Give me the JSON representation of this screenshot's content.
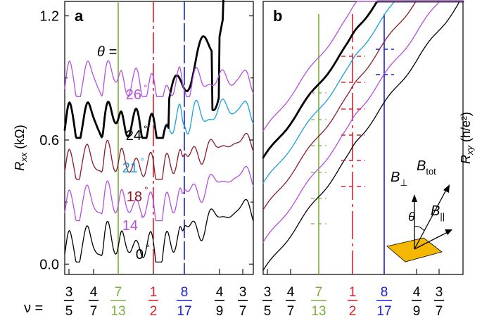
{
  "chart_data": [
    {
      "type": "line",
      "panel_label": "a",
      "ylabel_main": "R",
      "ylabel_sub": "xx",
      "ylabel_unit": " (kΩ)",
      "ylim": [
        -0.05,
        1.27
      ],
      "yticks": [
        {
          "value": 0.0,
          "label": "0.0"
        },
        {
          "value": 0.6,
          "label": "0.6"
        },
        {
          "value": 1.2,
          "label": "1.2"
        }
      ],
      "theta_prefix": "θ =",
      "theta_unit": "°",
      "series": [
        {
          "name": "0",
          "color": "#000000",
          "offset": 0.0,
          "bold": false
        },
        {
          "name": "14",
          "color": "#b44fe0",
          "offset": 0.2,
          "bold": false
        },
        {
          "name": "18",
          "color": "#8b1a2a",
          "offset": 0.4,
          "bold": false
        },
        {
          "name": "21",
          "color": "#1aa0dc",
          "offset": 0.6,
          "bold": false
        },
        {
          "name": "24",
          "color": "#000000",
          "offset": 0.6,
          "bold": true
        },
        {
          "name": "26",
          "color": "#b44fe0",
          "offset": 0.8,
          "bold": false
        }
      ]
    },
    {
      "type": "line",
      "panel_label": "b",
      "ylabel_main": "R",
      "ylabel_sub": "xy",
      "ylabel_unit": " (h/e²)",
      "series": [
        {
          "name": "0",
          "color": "#000000",
          "bold": false
        },
        {
          "name": "14",
          "color": "#b44fe0",
          "bold": false
        },
        {
          "name": "18",
          "color": "#8b1a2a",
          "bold": false
        },
        {
          "name": "21",
          "color": "#1aa0dc",
          "bold": false
        },
        {
          "name": "24",
          "color": "#000000",
          "bold": true
        },
        {
          "name": "26",
          "color": "#b44fe0",
          "bold": false
        }
      ],
      "inset": {
        "b_perp_main": "B",
        "b_perp_sub": "⊥",
        "b_tot_main": "B",
        "b_tot_sub": "tot",
        "b_par_main": "B",
        "b_par_sub": "||",
        "theta": "θ",
        "sample_color": "#f5b800"
      }
    }
  ],
  "filling_factors": {
    "nu_label": "ν =",
    "fractions": [
      {
        "num": "3",
        "den": "5",
        "color": "#000000",
        "marked": false
      },
      {
        "num": "4",
        "den": "7",
        "color": "#000000",
        "marked": false
      },
      {
        "num": "7",
        "den": "13",
        "color": "#7ab03a",
        "marked": true
      },
      {
        "num": "1",
        "den": "2",
        "color": "#e0202a",
        "marked": true
      },
      {
        "num": "8",
        "den": "17",
        "color": "#1a20d8",
        "marked": true
      },
      {
        "num": "4",
        "den": "9",
        "color": "#000000",
        "marked": false
      },
      {
        "num": "3",
        "den": "7",
        "color": "#000000",
        "marked": false
      }
    ]
  }
}
